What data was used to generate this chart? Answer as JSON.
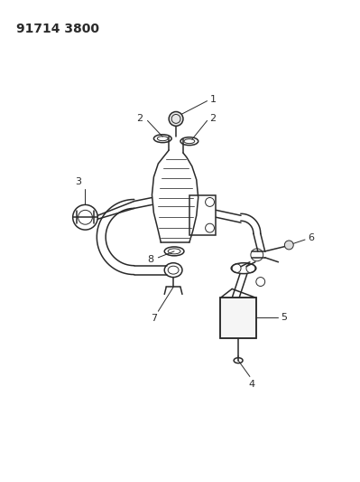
{
  "title": "91714 3800",
  "bg_color": "#ffffff",
  "line_color": "#2a2a2a",
  "label_color": "#2a2a2a",
  "title_fontsize": 10,
  "label_fontsize": 8,
  "figsize": [
    3.99,
    5.33
  ],
  "dpi": 100
}
